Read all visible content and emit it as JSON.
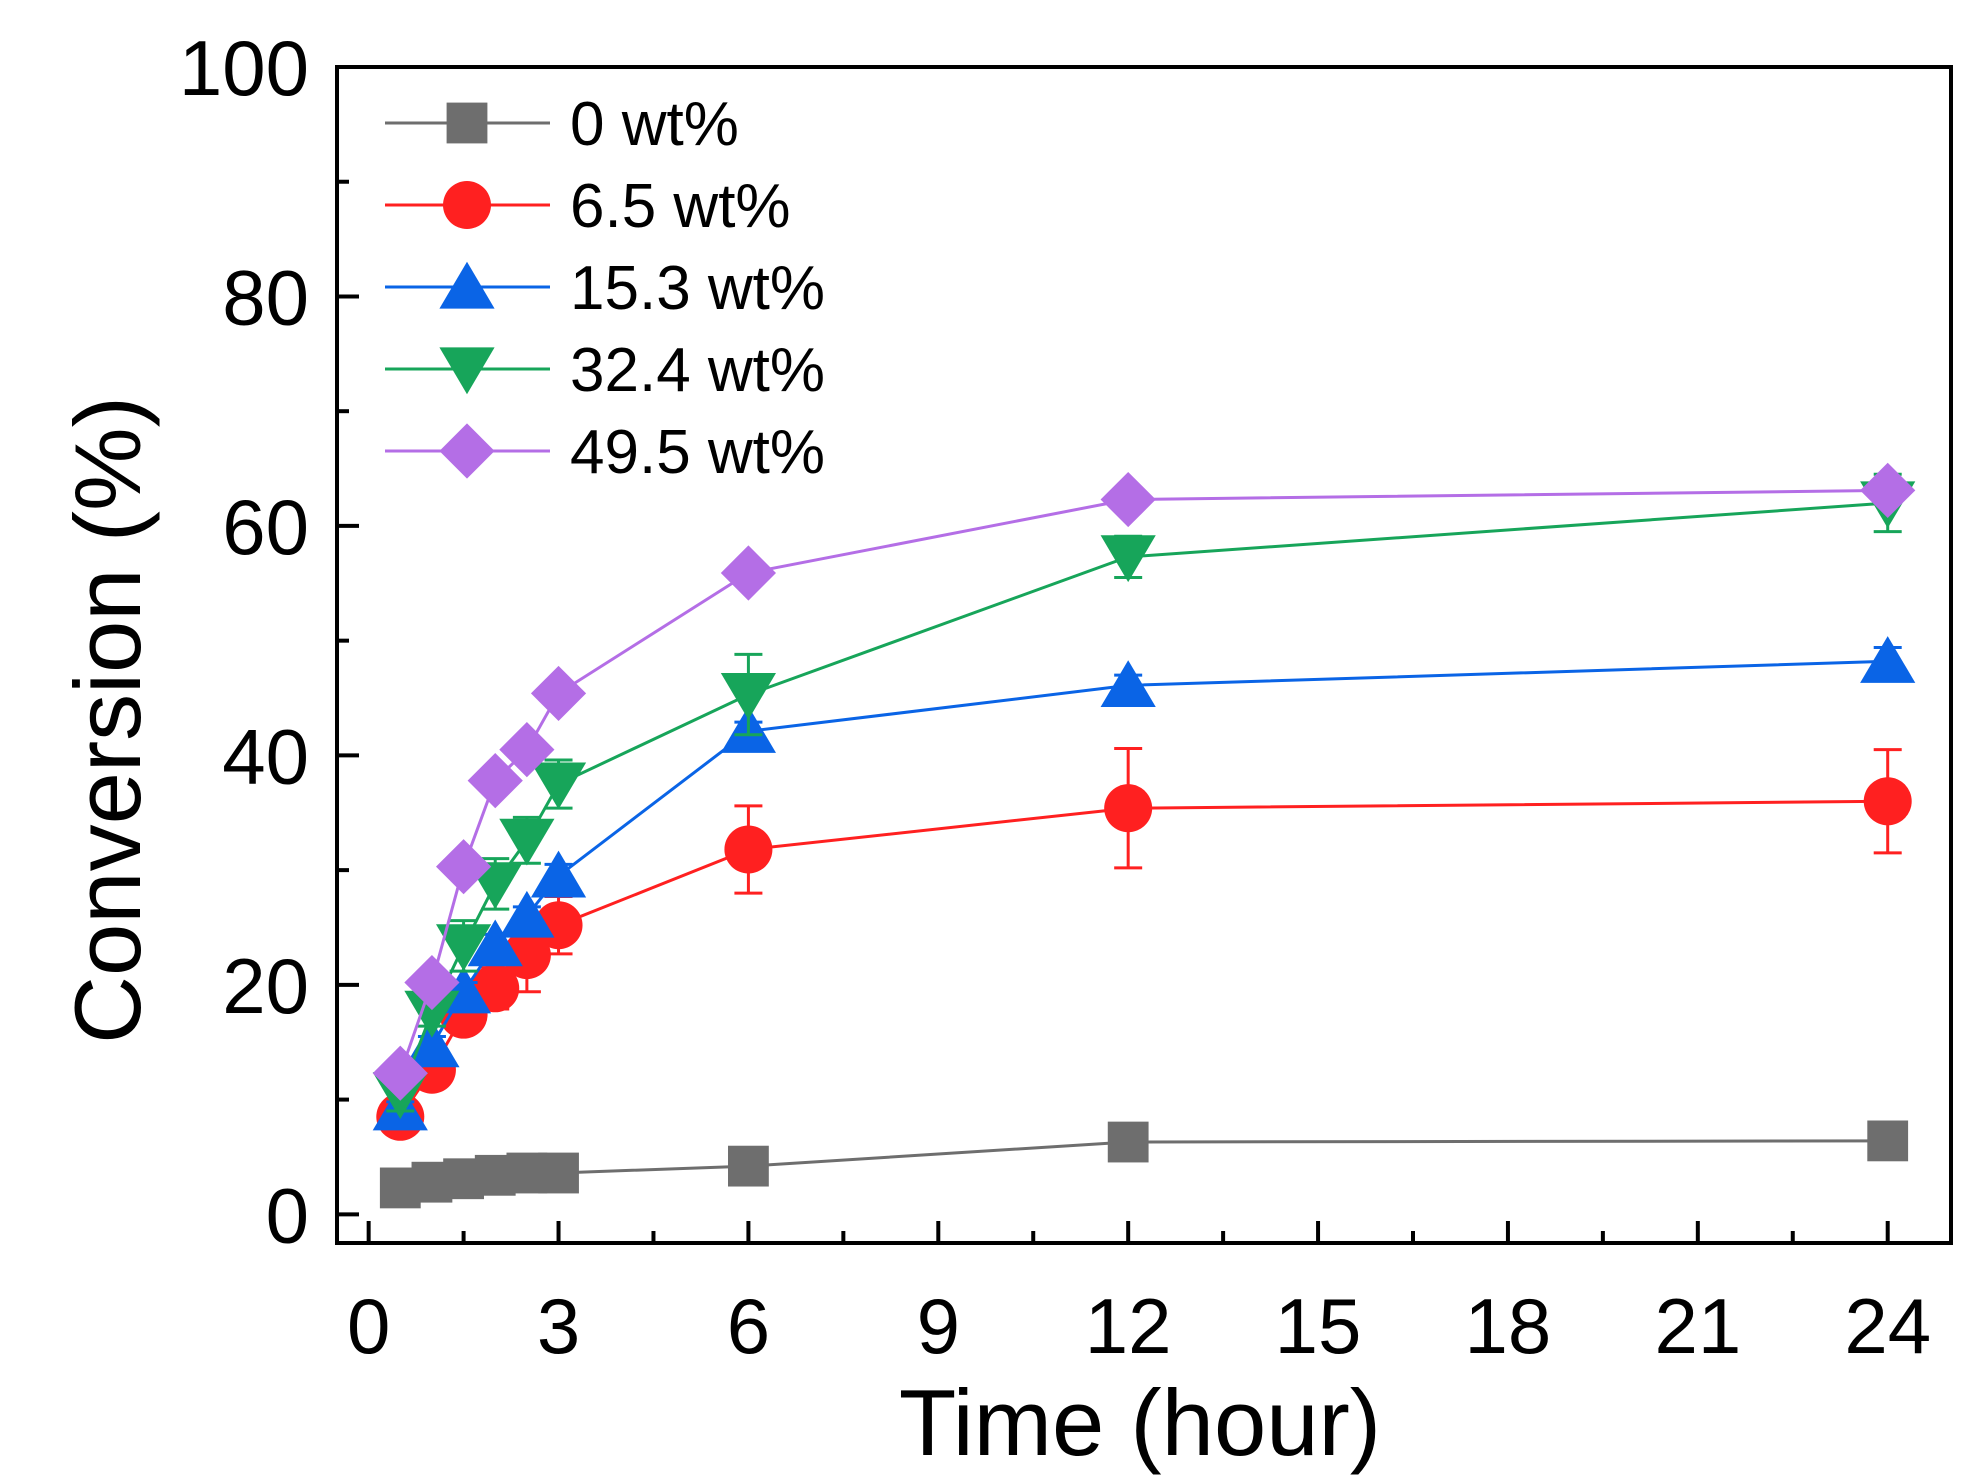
{
  "chart_data": {
    "type": "line",
    "title": "",
    "xlabel": "Time (hour)",
    "ylabel": "Conversion (%)",
    "xlim": [
      -0.5,
      25
    ],
    "ylim": [
      -2.5,
      100
    ],
    "xticks": [
      0,
      3,
      6,
      9,
      12,
      15,
      18,
      21,
      24
    ],
    "xtick_labels": [
      "0",
      "3",
      "6",
      "9",
      "12",
      "15",
      "18",
      "21",
      "24"
    ],
    "yticks": [
      0,
      20,
      40,
      60,
      80,
      100
    ],
    "ytick_labels": [
      "0",
      "20",
      "40",
      "60",
      "80",
      "100"
    ],
    "x_minor_ticks": [
      1.5,
      4.5,
      7.5,
      10.5,
      13.5,
      16.5,
      19.5,
      22.5
    ],
    "y_minor_ticks": [
      10,
      30,
      50,
      70,
      90
    ],
    "grid": false,
    "legend_position": "top-left",
    "series": [
      {
        "name": "0 wt%",
        "color": "#6e6e6e",
        "marker": "square",
        "x": [
          0.5,
          1,
          1.5,
          2,
          2.5,
          3,
          6,
          12,
          24
        ],
        "values": [
          2.3,
          2.8,
          3.1,
          3.4,
          3.6,
          3.6,
          4.2,
          6.3,
          6.4
        ],
        "errors": [
          0,
          0,
          0,
          0,
          0,
          0,
          0,
          0,
          0
        ]
      },
      {
        "name": "6.5 wt%",
        "color": "#ff2020",
        "marker": "circle",
        "x": [
          0.5,
          1,
          1.5,
          2,
          2.5,
          3,
          6,
          12,
          24
        ],
        "values": [
          8.5,
          12.6,
          17.4,
          19.7,
          22.6,
          25.2,
          31.8,
          35.4,
          36.0
        ],
        "errors": [
          0.8,
          1.0,
          1.5,
          1.8,
          3.2,
          2.5,
          3.8,
          5.2,
          4.5
        ]
      },
      {
        "name": "15.3 wt%",
        "color": "#0a64e6",
        "marker": "triangle-up",
        "x": [
          0.5,
          1,
          1.5,
          2,
          2.5,
          3,
          6,
          12,
          24
        ],
        "values": [
          9.2,
          14.7,
          19.4,
          23.5,
          26.0,
          29.5,
          42.1,
          46.1,
          48.2
        ],
        "errors": [
          0.6,
          0.8,
          0.8,
          0.9,
          0.8,
          1.0,
          0.8,
          0.9,
          1.2
        ]
      },
      {
        "name": "32.4 wt%",
        "color": "#17a55a",
        "marker": "triangle-down",
        "x": [
          0.5,
          1,
          1.5,
          2,
          2.5,
          3,
          6,
          12,
          24
        ],
        "values": [
          10.5,
          17.6,
          23.4,
          28.8,
          32.6,
          37.5,
          45.3,
          57.3,
          62.0
        ],
        "errors": [
          1.5,
          1.2,
          2.2,
          2.2,
          2.0,
          2.1,
          3.5,
          1.8,
          2.5
        ]
      },
      {
        "name": "49.5 wt%",
        "color": "#b46ee6",
        "marker": "diamond",
        "x": [
          0.5,
          1,
          1.5,
          2,
          2.5,
          3,
          6,
          12,
          24
        ],
        "values": [
          12.3,
          20.2,
          30.3,
          37.8,
          40.5,
          45.4,
          55.9,
          62.3,
          63.1
        ],
        "errors": [
          0,
          0,
          0,
          0,
          0,
          0,
          0,
          0,
          0
        ]
      }
    ]
  }
}
